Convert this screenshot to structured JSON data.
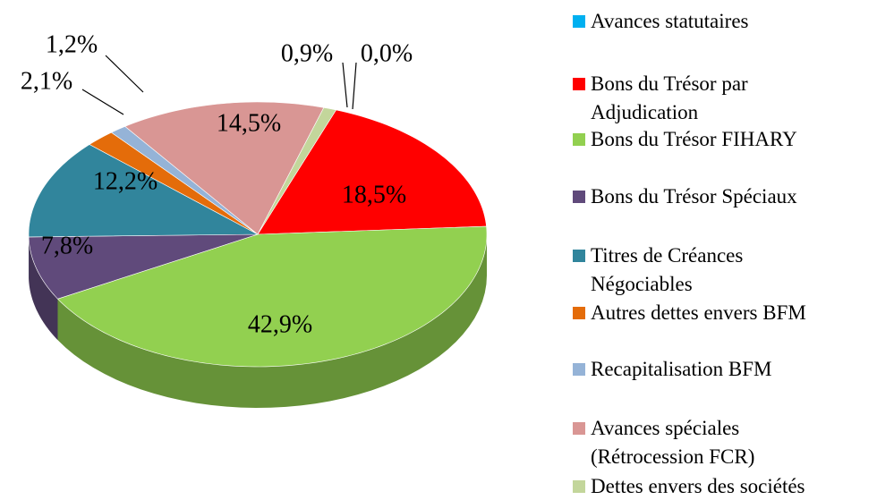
{
  "chart_data": {
    "type": "pie3d",
    "categories": [
      "Avances statutaires",
      "Bons du Trésor par\nAdjudication",
      "Bons du Trésor FIHARY",
      "Bons du Trésor Spéciaux",
      "Titres de Créances\nNégociables",
      "Autres dettes envers BFM",
      "Recapitalisation BFM",
      "Avances spéciales\n(Rétrocession FCR)",
      "Dettes envers des sociétés"
    ],
    "values": [
      0,
      18.5,
      42.9,
      7.8,
      12.2,
      2.1,
      1.2,
      14.5,
      0.9
    ],
    "value_labels": [
      "0,0%",
      "18,5%",
      "42,9%",
      "7,8%",
      "12,2%",
      "2,1%",
      "1,2%",
      "14,5%",
      "0,9%"
    ],
    "colors": [
      "#00b0f0",
      "#ff0000",
      "#92d050",
      "#604a7b",
      "#31859c",
      "#e46c0a",
      "#95b3d7",
      "#d99694",
      "#c3d69b"
    ],
    "legend": "right"
  }
}
